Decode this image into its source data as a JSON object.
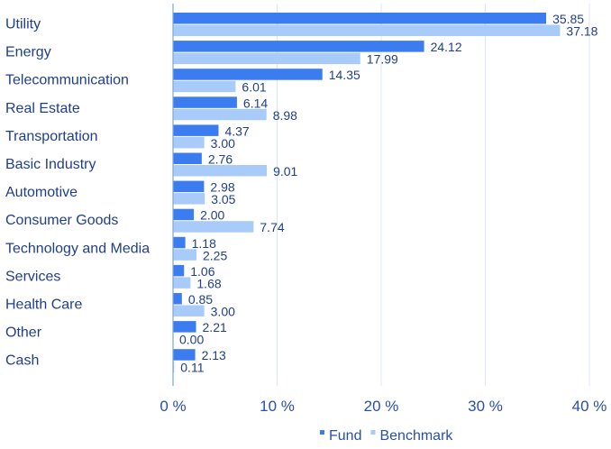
{
  "chart_data": {
    "type": "bar",
    "orientation": "horizontal",
    "categories": [
      "Utility",
      "Energy",
      "Telecommunication",
      "Real Estate",
      "Transportation",
      "Basic Industry",
      "Automotive",
      "Consumer Goods",
      "Technology and Media",
      "Services",
      "Health Care",
      "Other",
      "Cash"
    ],
    "series": [
      {
        "name": "Fund",
        "color": "#3b7cf0",
        "values": [
          35.85,
          24.12,
          14.35,
          6.14,
          4.37,
          2.76,
          2.98,
          2.0,
          1.18,
          1.06,
          0.85,
          2.21,
          2.13
        ]
      },
      {
        "name": "Benchmark",
        "color": "#a9cbfa",
        "values": [
          37.18,
          17.99,
          6.01,
          8.98,
          3.0,
          9.01,
          3.05,
          7.74,
          2.25,
          1.68,
          3.0,
          0.0,
          0.11
        ]
      }
    ],
    "value_labels": [
      [
        "35.85",
        "24.12",
        "14.35",
        "6.14",
        "4.37",
        "2.76",
        "2.98",
        "2.00",
        "1.18",
        "1.06",
        "0.85",
        "2.21",
        "2.13"
      ],
      [
        "37.18",
        "17.99",
        "6.01",
        "8.98",
        "3.00",
        "9.01",
        "3.05",
        "7.74",
        "2.25",
        "1.68",
        "3.00",
        "0.00",
        "0.11"
      ]
    ],
    "xlim": [
      0,
      40
    ],
    "xticks": [
      0,
      10,
      20,
      30,
      40
    ],
    "xtick_labels": [
      "0 %",
      "10 %",
      "20 %",
      "30 %",
      "40 %"
    ],
    "grid": true,
    "legend": "bottom-center",
    "title": "",
    "xlabel": "",
    "ylabel": ""
  }
}
